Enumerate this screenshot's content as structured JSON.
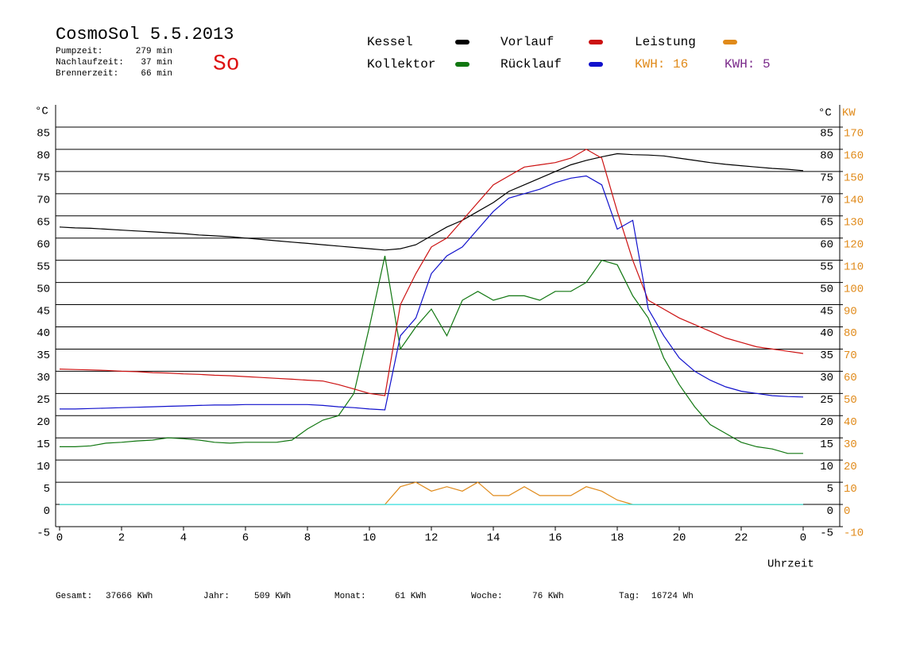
{
  "header": {
    "title": "CosmoSol 5.5.2013",
    "day": "So",
    "stats": [
      {
        "label": "Pumpzeit:",
        "value": "279 min"
      },
      {
        "label": "Nachlaufzeit:",
        "value": "37 min"
      },
      {
        "label": "Brennerzeit:",
        "value": "66 min"
      }
    ],
    "kwh": [
      {
        "text": "KWH: 16",
        "color": "#e08a1a"
      },
      {
        "text": "KWH: 5",
        "color": "#7a2a8a"
      }
    ]
  },
  "footer": [
    {
      "label": "Gesamt:",
      "value": "37666 KWh"
    },
    {
      "label": "Jahr:",
      "value": "509 KWh"
    },
    {
      "label": "Monat:",
      "value": "61 KWh"
    },
    {
      "label": "Woche:",
      "value": "76 KWh"
    },
    {
      "label": "Tag:",
      "value": "16724 Wh"
    }
  ],
  "chart_data": {
    "type": "line",
    "ylabel": "°C",
    "y2label": "°C",
    "y2unit": "KW",
    "xlabel": "Uhrzeit",
    "x": [
      0,
      0.5,
      1,
      1.5,
      2,
      2.5,
      3,
      3.5,
      4,
      4.5,
      5,
      5.5,
      6,
      6.5,
      7,
      7.5,
      8,
      8.5,
      9,
      9.5,
      10,
      10.5,
      11,
      11.5,
      12,
      12.5,
      13,
      13.5,
      14,
      14.5,
      15,
      15.5,
      16,
      16.5,
      17,
      17.5,
      18,
      18.5,
      19,
      19.5,
      20,
      20.5,
      21,
      21.5,
      22,
      22.5,
      23,
      23.5,
      24
    ],
    "xlim": [
      0,
      24
    ],
    "xticks": [
      0,
      2,
      4,
      6,
      8,
      10,
      12,
      14,
      16,
      18,
      20,
      22,
      {
        "value": 24,
        "label": "0"
      }
    ],
    "ylim": [
      -5,
      85
    ],
    "yticks": [
      -5,
      0,
      5,
      10,
      15,
      20,
      25,
      30,
      35,
      40,
      45,
      50,
      55,
      60,
      65,
      70,
      75,
      80,
      85
    ],
    "y2lim": [
      -10,
      170
    ],
    "y2ticks": [
      -10,
      0,
      10,
      20,
      30,
      40,
      50,
      60,
      70,
      80,
      90,
      100,
      110,
      120,
      130,
      140,
      150,
      160,
      170
    ],
    "grid": true,
    "series": [
      {
        "name": "Kessel",
        "color": "#000000",
        "values": [
          62.5,
          62.3,
          62.2,
          62,
          61.8,
          61.6,
          61.4,
          61.2,
          61,
          60.7,
          60.5,
          60.3,
          60,
          59.7,
          59.4,
          59.1,
          58.8,
          58.5,
          58.2,
          57.9,
          57.6,
          57.3,
          57.6,
          58.5,
          60.5,
          62.5,
          64,
          66,
          68,
          70.5,
          72,
          73.5,
          75,
          76.5,
          77.5,
          78.3,
          79,
          78.8,
          78.7,
          78.5,
          78,
          77.5,
          77,
          76.6,
          76.3,
          76,
          75.7,
          75.5,
          75.2
        ]
      },
      {
        "name": "Kollektor",
        "color": "#117711",
        "values": [
          13,
          13,
          13.2,
          13.8,
          14,
          14.3,
          14.5,
          15,
          14.8,
          14.5,
          14,
          13.8,
          14,
          14,
          14,
          14.5,
          17,
          19,
          20,
          25,
          40,
          56,
          35,
          40,
          44,
          38,
          46,
          48,
          46,
          47,
          47,
          46,
          48,
          48,
          50,
          55,
          54,
          47,
          42,
          33,
          27,
          22,
          18,
          16,
          14,
          13,
          12.5,
          11.5,
          11.5
        ]
      },
      {
        "name": "Vorlauf",
        "color": "#cc1111",
        "values": [
          30.5,
          30.4,
          30.3,
          30.2,
          30,
          29.9,
          29.7,
          29.6,
          29.4,
          29.3,
          29.1,
          29,
          28.8,
          28.6,
          28.4,
          28.2,
          28,
          27.8,
          27,
          26,
          25,
          24.5,
          45,
          52,
          58,
          60,
          64,
          68,
          72,
          74,
          76,
          76.5,
          77,
          78,
          80,
          78,
          66,
          55,
          46,
          44,
          42,
          40.5,
          39,
          37.5,
          36.5,
          35.5,
          35,
          34.5,
          34
        ]
      },
      {
        "name": "Rücklauf",
        "color": "#1111cc",
        "values": [
          21.5,
          21.5,
          21.6,
          21.7,
          21.8,
          21.9,
          22,
          22.1,
          22.2,
          22.3,
          22.4,
          22.4,
          22.5,
          22.5,
          22.5,
          22.5,
          22.5,
          22.3,
          22,
          21.8,
          21.5,
          21.3,
          38,
          42,
          52,
          56,
          58,
          62,
          66,
          69,
          70,
          71,
          72.5,
          73.5,
          74,
          72,
          62,
          64,
          44,
          38,
          33,
          30,
          28,
          26.5,
          25.5,
          25,
          24.5,
          24.3,
          24.2
        ]
      },
      {
        "name": "Leistung",
        "color": "#e08a1a",
        "axis": "y2",
        "values": [
          0,
          0,
          0,
          0,
          0,
          0,
          0,
          0,
          0,
          0,
          0,
          0,
          0,
          0,
          0,
          0,
          0,
          0,
          0,
          0,
          0,
          0,
          8,
          10,
          6,
          8,
          6,
          10,
          4,
          4,
          8,
          4,
          4,
          4,
          8,
          6,
          2,
          0,
          0,
          0,
          0,
          0,
          0,
          0,
          0,
          0,
          0,
          0,
          0
        ]
      },
      {
        "color": "#33dddd",
        "values": [
          0,
          0,
          0,
          0,
          0,
          0,
          0,
          0,
          0,
          0,
          0,
          0,
          0,
          0,
          0,
          0,
          0,
          0,
          0,
          0,
          0,
          0,
          0,
          0,
          0,
          0,
          0,
          0,
          0,
          0,
          0,
          0,
          0,
          0,
          0,
          0,
          0,
          0,
          0,
          0,
          0,
          0,
          0,
          0,
          0,
          0,
          0,
          0,
          0
        ]
      }
    ]
  }
}
